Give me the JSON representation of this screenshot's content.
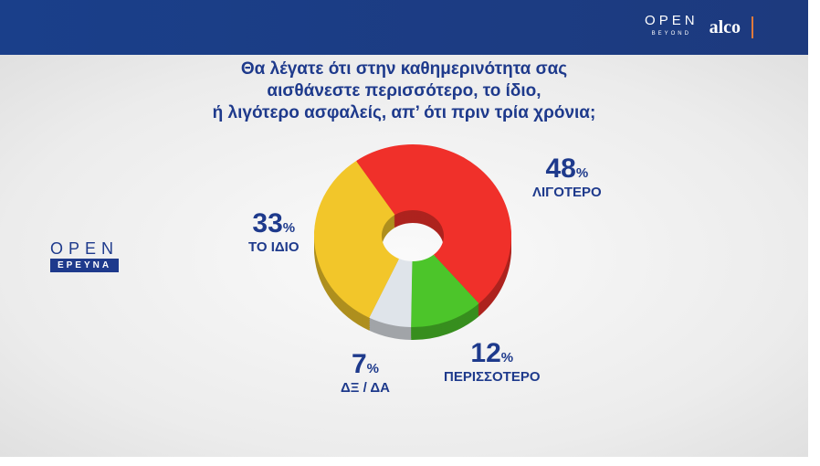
{
  "header": {
    "brand_open": "OPEN",
    "brand_beyond": "BEYOND",
    "brand_alco": "alco"
  },
  "logo": {
    "open": "OPEN",
    "sub": "ΕΡΕΥΝΑ"
  },
  "chart_data": {
    "type": "pie",
    "title": "Θα λέγατε ότι στην καθημερινότητα σας αισθάνεστε περισσότερο, το ίδιο, ή λιγότερο ασφαλείς, απ’  ότι πριν τρία χρόνια;",
    "title_lines": [
      "Θα λέγατε ότι στην καθημερινότητα σας",
      "αισθάνεστε περισσότερο, το ίδιο,",
      "ή λιγότερο ασφαλείς, απ’  ότι πριν τρία χρόνια;"
    ],
    "slices": [
      {
        "label": "ΛΙΓΟΤΕΡΟ",
        "value": 48,
        "color": "#f0302a"
      },
      {
        "label": "ΠΕΡΙΣΣΟΤΕΡΟ",
        "value": 12,
        "color": "#4cc52a"
      },
      {
        "label": "ΔΞ / ΔΑ",
        "value": 7,
        "color": "#dfe4ea"
      },
      {
        "label": "ΤΟ ΙΔΙΟ",
        "value": 33,
        "color": "#f2c62a"
      }
    ],
    "unit": "%"
  }
}
